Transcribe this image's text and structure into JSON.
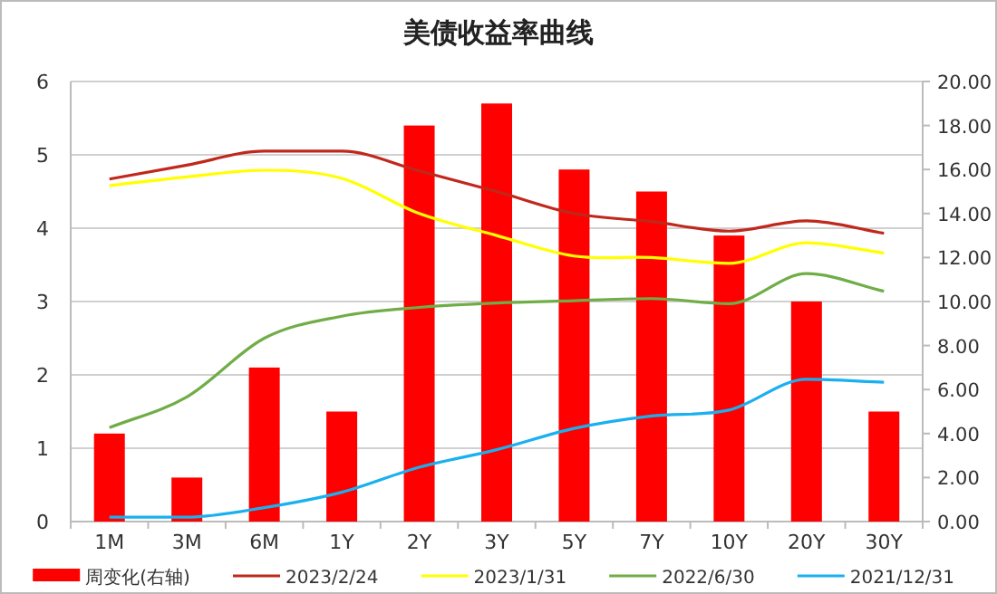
{
  "chart_data": {
    "type": "line",
    "title": "美债收益率曲线",
    "categories": [
      "1M",
      "3M",
      "6M",
      "1Y",
      "2Y",
      "3Y",
      "5Y",
      "7Y",
      "10Y",
      "20Y",
      "30Y"
    ],
    "series": [
      {
        "name": "周变化(右轴)",
        "type": "bar",
        "axis": "y2",
        "color": "#ff0000",
        "values": [
          4,
          2,
          7,
          5,
          18,
          19,
          16,
          15,
          13,
          10,
          5
        ]
      },
      {
        "name": "2023/2/24",
        "color": "#c0281c",
        "values": [
          4.67,
          4.86,
          5.05,
          5.05,
          4.78,
          4.5,
          4.2,
          4.09,
          3.96,
          4.1,
          3.93
        ]
      },
      {
        "name": "2023/1/31",
        "color": "#ffff00",
        "values": [
          4.58,
          4.7,
          4.79,
          4.68,
          4.2,
          3.9,
          3.62,
          3.6,
          3.52,
          3.8,
          3.66
        ]
      },
      {
        "name": "2022/6/30",
        "color": "#70ad47",
        "values": [
          1.28,
          1.7,
          2.5,
          2.8,
          2.92,
          2.98,
          3.01,
          3.04,
          2.97,
          3.38,
          3.14
        ]
      },
      {
        "name": "2021/12/31",
        "color": "#1ab0f0",
        "values": [
          0.06,
          0.06,
          0.19,
          0.4,
          0.74,
          0.98,
          1.27,
          1.44,
          1.52,
          1.94,
          1.9
        ]
      }
    ],
    "ylim": [
      0,
      6
    ],
    "yticks": [
      0,
      1,
      2,
      3,
      4,
      5,
      6
    ],
    "y2lim": [
      0,
      20
    ],
    "y2ticks": [
      {
        "value": 0,
        "label": "0.00"
      },
      {
        "value": 2,
        "label": "2.00"
      },
      {
        "value": 4,
        "label": "4.00"
      },
      {
        "value": 6,
        "label": "6.00"
      },
      {
        "value": 8,
        "label": "8.00"
      },
      {
        "value": 10,
        "label": "10.00"
      },
      {
        "value": 12,
        "label": "12.00"
      },
      {
        "value": 14,
        "label": "14.00"
      },
      {
        "value": 16,
        "label": "16.00"
      },
      {
        "value": 18,
        "label": "18.00"
      },
      {
        "value": 20,
        "label": "20.00"
      }
    ],
    "grid": "y",
    "legend": "bottom"
  }
}
